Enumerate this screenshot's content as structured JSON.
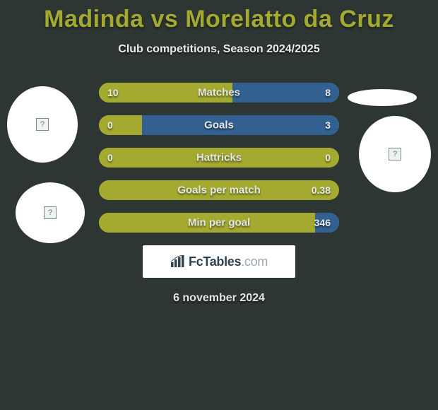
{
  "title": "Madinda vs Morelatto da Cruz",
  "subtitle": "Club competitions, Season 2024/2025",
  "date": "6 november 2024",
  "logo": {
    "strong": "FcTables",
    "suffix": ".com"
  },
  "colors": {
    "left_segment": "#a3aa2f",
    "right_segment": "#326091",
    "row_bg": "#a3aa2f"
  },
  "stats": [
    {
      "label": "Matches",
      "left_val": "10",
      "right_val": "8",
      "left_pct": 55.6,
      "right_pct": 44.4
    },
    {
      "label": "Goals",
      "left_val": "0",
      "right_val": "3",
      "left_pct": 18.0,
      "right_pct": 82.0
    },
    {
      "label": "Hattricks",
      "left_val": "0",
      "right_val": "0",
      "left_pct": 100,
      "right_pct": 0
    },
    {
      "label": "Goals per match",
      "left_val": "",
      "right_val": "0.38",
      "left_pct": 100,
      "right_pct": 0
    },
    {
      "label": "Min per goal",
      "left_val": "",
      "right_val": "346",
      "left_pct": 90.0,
      "right_pct": 10.0
    }
  ]
}
